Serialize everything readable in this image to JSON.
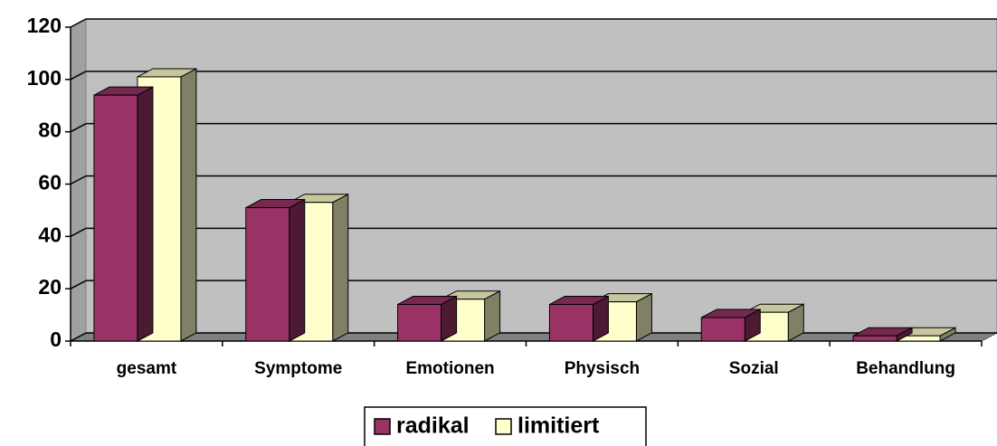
{
  "chart_data": {
    "type": "bar3d",
    "categories": [
      "gesamt",
      "Symptome",
      "Emotionen",
      "Physisch",
      "Sozial",
      "Behandlung"
    ],
    "series": [
      {
        "name": "radikal",
        "color": "#993366",
        "values": [
          94,
          51,
          14,
          14,
          9,
          2
        ]
      },
      {
        "name": "limitiert",
        "color": "#ffffcc",
        "values": [
          101,
          53,
          16,
          15,
          11,
          2
        ]
      }
    ],
    "ylim": [
      0,
      120
    ],
    "yticks": [
      0,
      20,
      40,
      60,
      80,
      100,
      120
    ],
    "grid": true,
    "legend": "bottom"
  }
}
